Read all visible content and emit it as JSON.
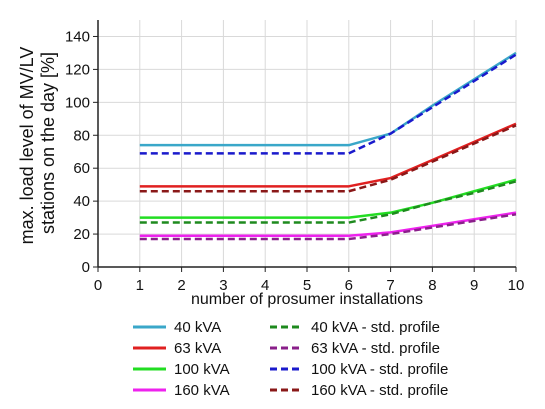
{
  "chart_data": {
    "type": "line",
    "xlabel": "number of prosumer installations",
    "ylabel": "max. load level of MV/LV stations on the day [%]",
    "ylabel_lines": [
      "max. load level of MV/LV",
      "stations on the day [%]"
    ],
    "xlim": [
      0,
      10
    ],
    "ylim": [
      0,
      150
    ],
    "x_ticks": [
      "0",
      "1",
      "2",
      "3",
      "4",
      "5",
      "6",
      "7",
      "8",
      "9",
      "10"
    ],
    "y_ticks": [
      "0",
      "20",
      "40",
      "60",
      "80",
      "100",
      "120",
      "140"
    ],
    "grid": true,
    "legend_position": "bottom",
    "x": [
      1,
      2,
      3,
      4,
      5,
      6,
      7,
      8,
      9,
      10
    ],
    "series": [
      {
        "name": "40 kVA",
        "color": "#3aa7c9",
        "dash": false,
        "values": [
          74,
          74,
          74,
          74,
          74,
          74,
          81,
          98,
          114,
          130
        ]
      },
      {
        "name": "63 kVA",
        "color": "#e02020",
        "dash": false,
        "values": [
          49,
          49,
          49,
          49,
          49,
          49,
          54,
          65,
          76,
          87
        ]
      },
      {
        "name": "100 kVA",
        "color": "#22dd22",
        "dash": false,
        "values": [
          30,
          30,
          30,
          30,
          30,
          30,
          33,
          39,
          46,
          53
        ]
      },
      {
        "name": "160 kVA",
        "color": "#ee22ee",
        "dash": false,
        "values": [
          19,
          19,
          19,
          19,
          19,
          19,
          21,
          25,
          29,
          33
        ]
      },
      {
        "name": "40 kVA - std. profile",
        "color": "#1e8a1e",
        "dash": true,
        "values": [
          27,
          27,
          27,
          27,
          27,
          27,
          32,
          39,
          45,
          52
        ]
      },
      {
        "name": "63 kVA - std. profile",
        "color": "#8a1f8a",
        "dash": true,
        "values": [
          17,
          17,
          17,
          17,
          17,
          17,
          20,
          24,
          28,
          32
        ]
      },
      {
        "name": "100 kVA - std. profile",
        "color": "#1a1acc",
        "dash": true,
        "values": [
          69,
          69,
          69,
          69,
          69,
          69,
          81,
          97,
          113,
          129
        ]
      },
      {
        "name": "160 kVA - std. profile",
        "color": "#8a1818",
        "dash": true,
        "values": [
          46,
          46,
          46,
          46,
          46,
          46,
          53,
          64,
          75,
          86
        ]
      }
    ]
  }
}
